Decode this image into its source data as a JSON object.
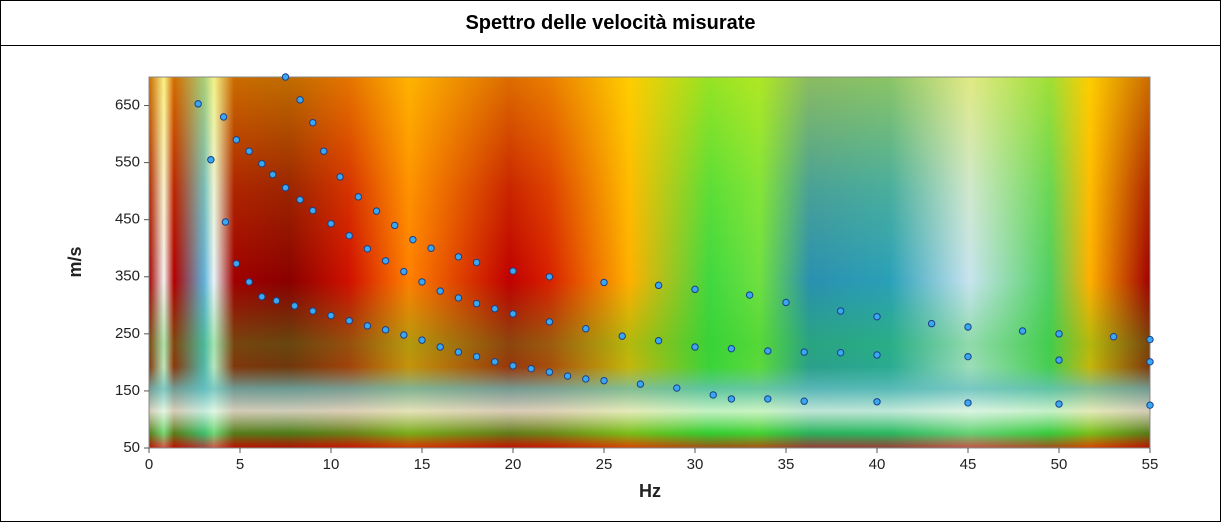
{
  "chart_data": {
    "type": "scatter",
    "title": "Spettro delle velocità misurate",
    "xlabel": "Hz",
    "ylabel": "m/s",
    "xlim": [
      0,
      55
    ],
    "ylim": [
      50,
      700
    ],
    "xticks": [
      0,
      5,
      10,
      15,
      20,
      25,
      30,
      35,
      40,
      45,
      50,
      55
    ],
    "yticks": [
      50,
      150,
      250,
      350,
      450,
      550,
      650
    ],
    "marker_color": "#3aa8f0",
    "series": [
      {
        "color": "#3aa8f0",
        "x": [
          7.5,
          8.3,
          9,
          9.6,
          10.5,
          11.5,
          12.5,
          13.5,
          14.5,
          15.5,
          17,
          18,
          20,
          22,
          25,
          28,
          30,
          33,
          35,
          38,
          40,
          43,
          45,
          48,
          50,
          53,
          55
        ],
        "values": [
          700,
          660,
          620,
          570,
          525,
          490,
          465,
          440,
          415,
          400,
          385,
          375,
          360,
          350,
          340,
          335,
          328,
          318,
          305,
          290,
          280,
          268,
          262,
          255,
          250,
          245,
          240
        ]
      },
      {
        "color": "#3aa8f0",
        "x": [
          2.7,
          4.1,
          4.8,
          5.5,
          6.2,
          6.8,
          7.5,
          8.3,
          9,
          10,
          11,
          12,
          13,
          14,
          15,
          16,
          17,
          18,
          19,
          20,
          22,
          24,
          26,
          28,
          30,
          32,
          34,
          36,
          38,
          40,
          45,
          50,
          55
        ],
        "values": [
          653,
          630,
          590,
          570,
          548,
          529,
          506,
          485,
          466,
          443,
          422,
          399,
          378,
          359,
          341,
          325,
          313,
          303,
          294,
          285,
          271,
          259,
          246,
          238,
          227,
          224,
          220,
          218,
          217,
          213,
          210,
          204,
          201
        ]
      },
      {
        "color": "#3aa8f0",
        "x": [
          3.4,
          4.2,
          4.8,
          5.5,
          6.2,
          7,
          8,
          9,
          10,
          11,
          12,
          13,
          14,
          15,
          16,
          17,
          18,
          19,
          20,
          21,
          22,
          23,
          24,
          25,
          27,
          29,
          31,
          32,
          34,
          36,
          40,
          45,
          50,
          55
        ],
        "values": [
          555,
          446,
          373,
          341,
          315,
          308,
          299,
          290,
          282,
          273,
          264,
          257,
          248,
          239,
          227,
          218,
          210,
          201,
          194,
          189,
          183,
          176,
          171,
          168,
          162,
          155,
          143,
          136,
          136,
          132,
          131,
          129,
          127,
          125
        ]
      }
    ]
  }
}
